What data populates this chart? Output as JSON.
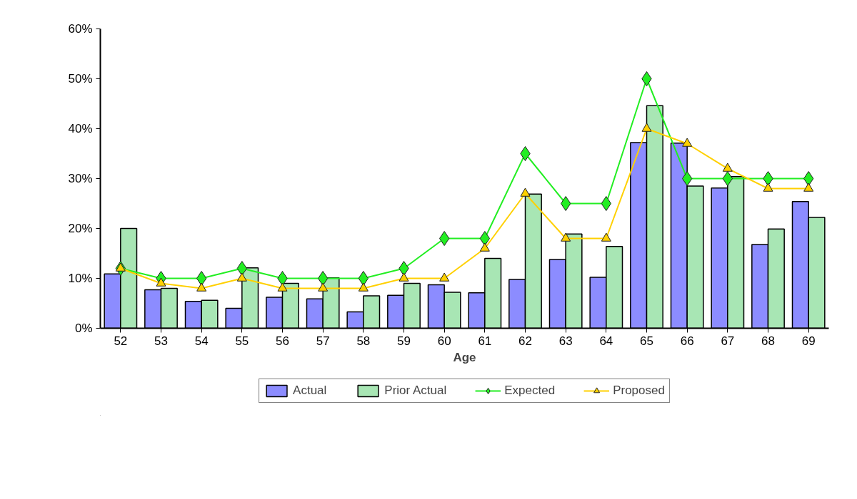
{
  "chart_data": {
    "type": "bar",
    "xlabel": "Age",
    "categories": [
      "52",
      "53",
      "54",
      "55",
      "56",
      "57",
      "58",
      "59",
      "60",
      "61",
      "62",
      "63",
      "64",
      "65",
      "66",
      "67",
      "68",
      "69"
    ],
    "series": [
      {
        "name": "Actual",
        "color": "#8c8cff",
        "values": [
          10.9,
          7.7,
          5.4,
          4.0,
          6.2,
          5.9,
          3.3,
          6.6,
          8.7,
          7.1,
          9.8,
          13.8,
          10.2,
          37.2,
          37.1,
          28.1,
          16.8,
          25.4
        ]
      },
      {
        "name": "Prior Actual",
        "color": "#a8e6b4",
        "values": [
          20.0,
          8.0,
          5.6,
          12.1,
          9.0,
          10.1,
          6.5,
          9.0,
          7.2,
          14.0,
          26.9,
          18.9,
          16.4,
          44.6,
          28.5,
          30.4,
          19.9,
          22.2
        ]
      },
      {
        "name": "Expected",
        "type": "line",
        "color": "#22ee22",
        "marker": "diamond",
        "values": [
          12,
          10,
          10,
          12,
          10,
          10,
          10,
          12,
          18,
          18,
          35,
          25,
          25,
          50,
          30,
          30,
          30,
          30
        ]
      },
      {
        "name": "Proposed",
        "type": "line",
        "color": "#ffd000",
        "marker": "triangle",
        "values": [
          12,
          9,
          8,
          10,
          8,
          8,
          8,
          10,
          10,
          16,
          27,
          18,
          18,
          40,
          37,
          32,
          28,
          28
        ]
      }
    ],
    "ylim": [
      0,
      60
    ],
    "yticks": [
      {
        "value": 0,
        "label": "0%"
      },
      {
        "value": 10,
        "label": "10%"
      },
      {
        "value": 20,
        "label": "20%"
      },
      {
        "value": 30,
        "label": "30%"
      },
      {
        "value": 40,
        "label": "40%"
      },
      {
        "value": 50,
        "label": "50%"
      },
      {
        "value": 60,
        "label": "60%"
      }
    ],
    "grid": false,
    "legend": "bottom",
    "line_style": "solid"
  }
}
